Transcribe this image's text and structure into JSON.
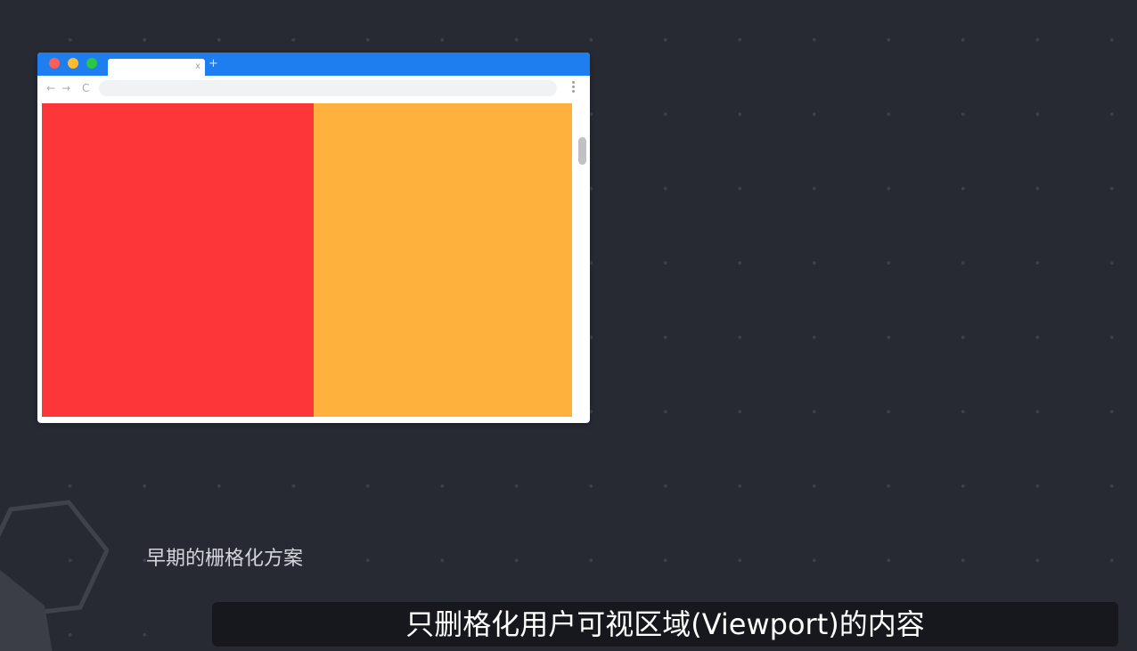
{
  "browser": {
    "tab": {
      "label": "",
      "close_glyph": "x"
    },
    "new_tab_glyph": "+",
    "toolbar": {
      "back_glyph": "←",
      "forward_glyph": "→",
      "reload_glyph": "C",
      "address_value": ""
    },
    "viewport": {
      "left_block_color": "#fd363a",
      "right_block_color": "#ffb13e"
    },
    "titlebar_color": "#1e7ef0"
  },
  "captions": {
    "section_title": "早期的栅格化方案",
    "subtitle": "只删格化用户可视区域(Viewport)的内容"
  }
}
